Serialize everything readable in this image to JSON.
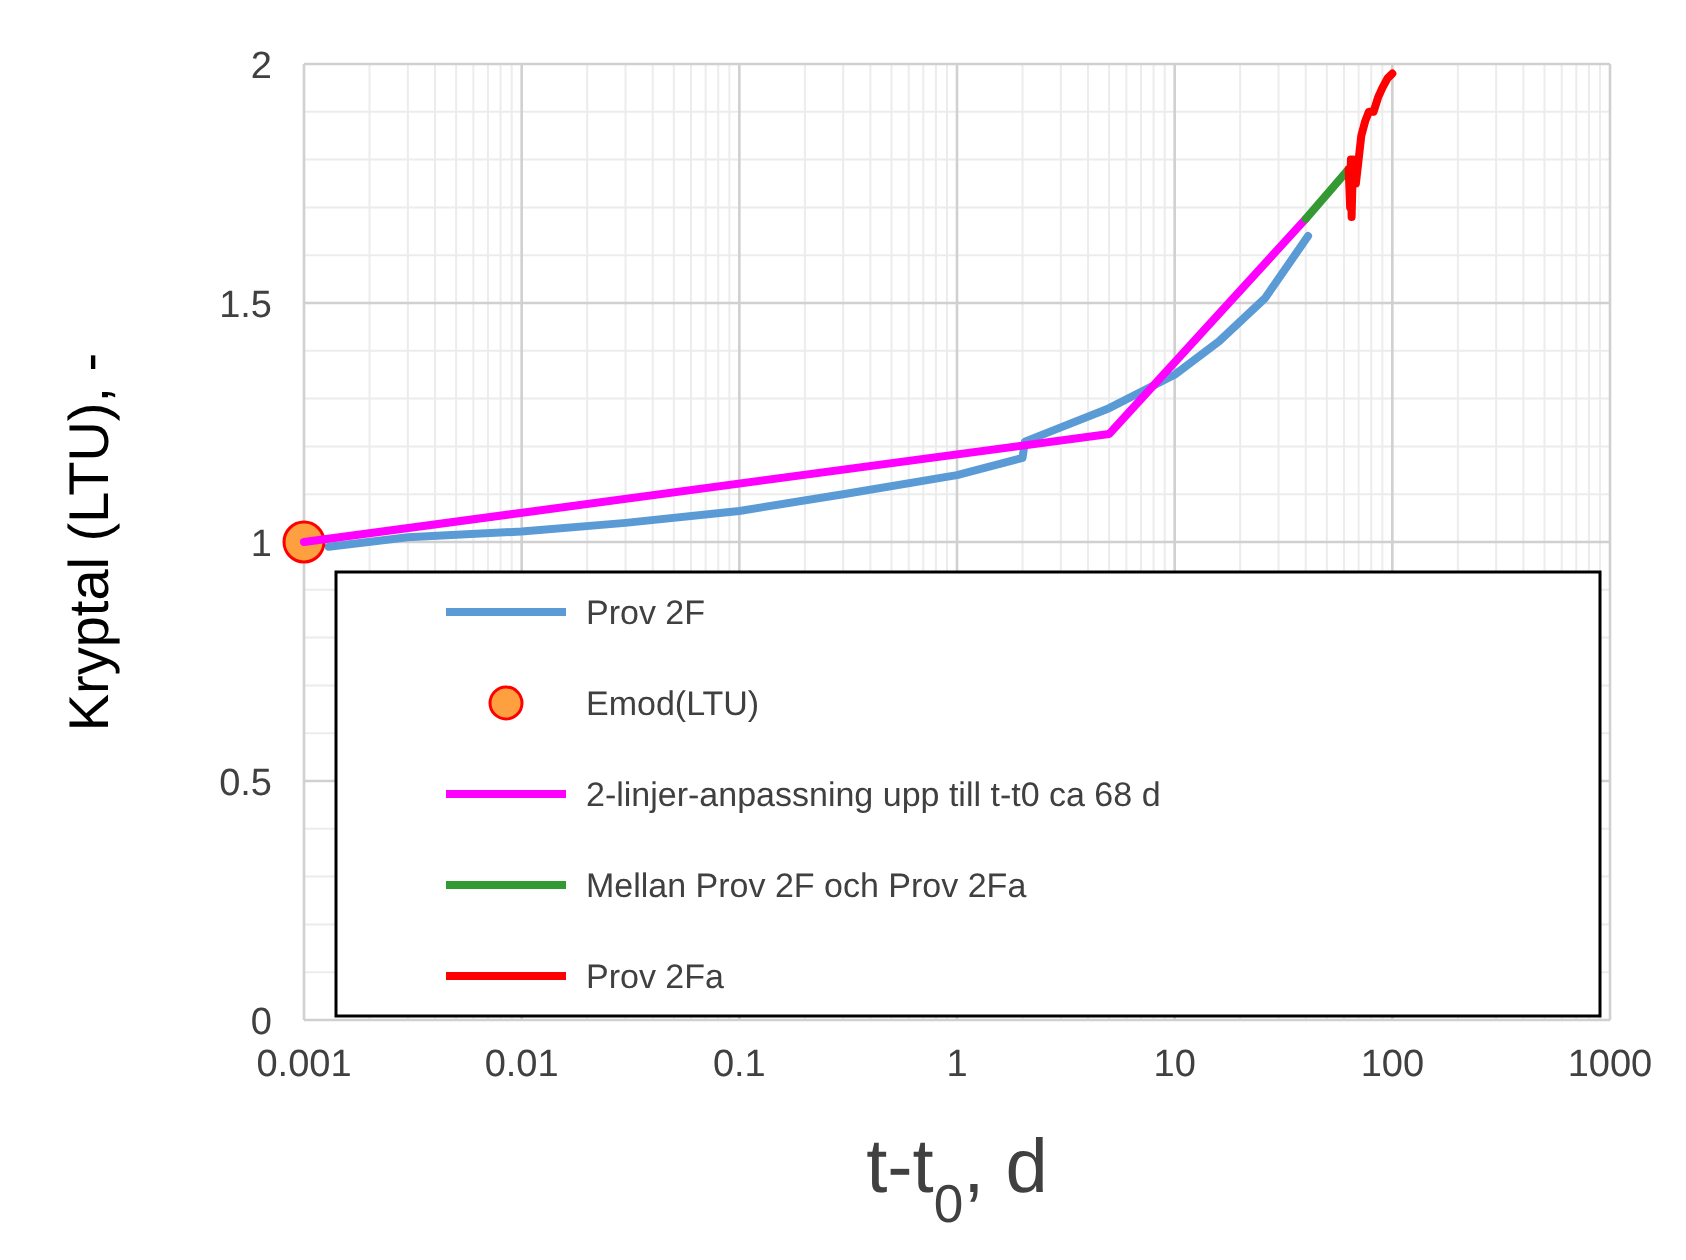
{
  "chart_data": {
    "type": "line",
    "xlabel": "t-t$_{0}$, d",
    "ylabel": "Kryptal (LTU), -",
    "log": "x",
    "xlim": [
      0.001,
      1000
    ],
    "xticks": [
      0.001,
      0.01,
      0.1,
      1,
      10,
      100,
      1000
    ],
    "ylim": [
      0,
      2
    ],
    "yticks": [
      0,
      0.5,
      1,
      1.5,
      2
    ],
    "grid": true,
    "legend": "bottom",
    "series": [
      {
        "name": "Prov 2F",
        "color": "#5b9bd5",
        "x": [
          0.0013,
          0.003,
          0.01,
          0.03,
          0.1,
          0.3,
          1,
          2,
          2.05,
          5,
          10,
          16,
          26,
          41
        ],
        "values": [
          0.99,
          1.01,
          1.022,
          1.04,
          1.065,
          1.1,
          1.14,
          1.176,
          1.21,
          1.28,
          1.35,
          1.42,
          1.51,
          1.64
        ]
      },
      {
        "name": "Emod(LTU)",
        "type": "scatter",
        "marker": "circle",
        "color": "#ffa040",
        "x": [
          0.001
        ],
        "values": [
          1
        ]
      },
      {
        "name": "2-linjer-anpassning upp till t-t0 ca 68 d",
        "color": "#ff00ff",
        "x": [
          0.001,
          5,
          40
        ],
        "values": [
          1,
          1.226,
          1.676
        ]
      },
      {
        "name": "Mellan Prov 2F och Prov 2Fa",
        "color": "#339933",
        "x": [
          40,
          63
        ],
        "values": [
          1.676,
          1.78
        ]
      },
      {
        "name": "Prov 2Fa",
        "color": "#ff0000",
        "x": [
          63,
          64,
          64.5,
          65,
          66,
          68,
          70,
          72,
          75,
          78,
          82,
          86,
          90,
          95,
          100
        ],
        "values": [
          1.78,
          1.7,
          1.8,
          1.68,
          1.8,
          1.75,
          1.8,
          1.85,
          1.88,
          1.9,
          1.9,
          1.93,
          1.95,
          1.97,
          1.98
        ]
      }
    ]
  }
}
